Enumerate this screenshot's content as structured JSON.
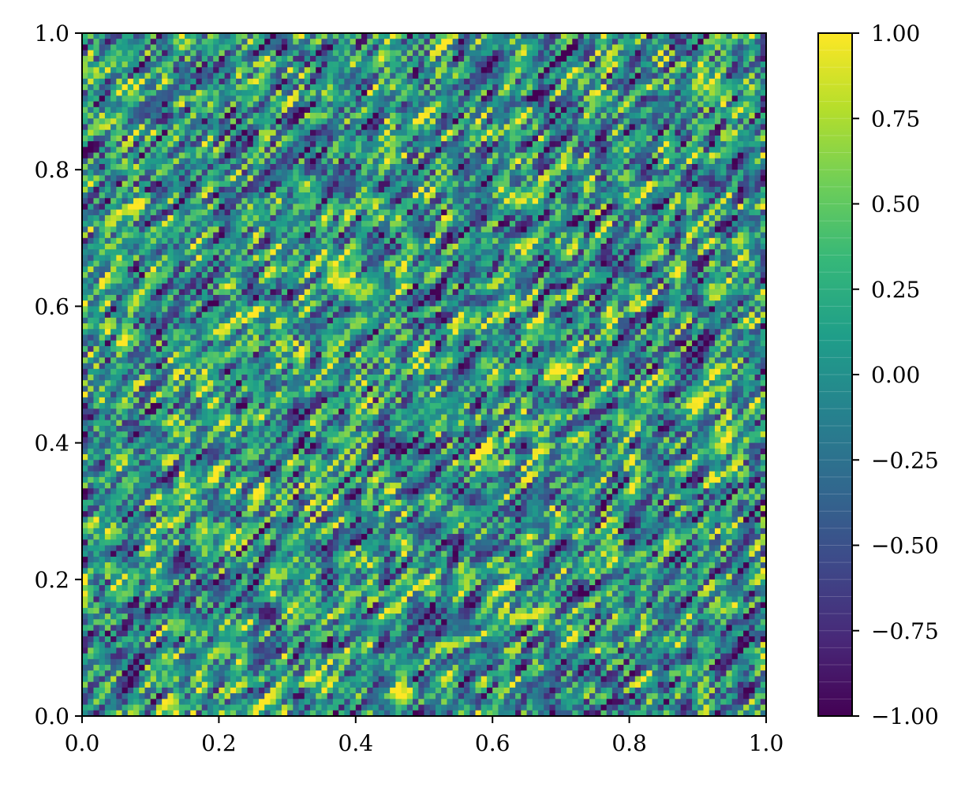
{
  "chart_data": {
    "type": "heatmap",
    "title": "",
    "xlabel": "",
    "ylabel": "",
    "xlim": [
      0,
      1
    ],
    "ylim": [
      0,
      1
    ],
    "x_ticks": [
      "0.0",
      "0.2",
      "0.4",
      "0.6",
      "0.8",
      "1.0"
    ],
    "y_ticks": [
      "0.0",
      "0.2",
      "0.4",
      "0.6",
      "0.8",
      "1.0"
    ],
    "colorbar": {
      "range": [
        -1,
        1
      ],
      "ticks": [
        "1.00",
        "0.75",
        "0.50",
        "0.25",
        "0.00",
        "−0.25",
        "−0.50",
        "−0.75",
        "−1.00"
      ],
      "colormap": "viridis",
      "colors": [
        "#440154",
        "#482878",
        "#3e4989",
        "#31688e",
        "#26828e",
        "#1f9e89",
        "#35b779",
        "#6ece58",
        "#b5de2b",
        "#fde725"
      ]
    },
    "grid": false,
    "field": "random noise field with values in [-1, 1], pattern with diagonal streaks"
  }
}
